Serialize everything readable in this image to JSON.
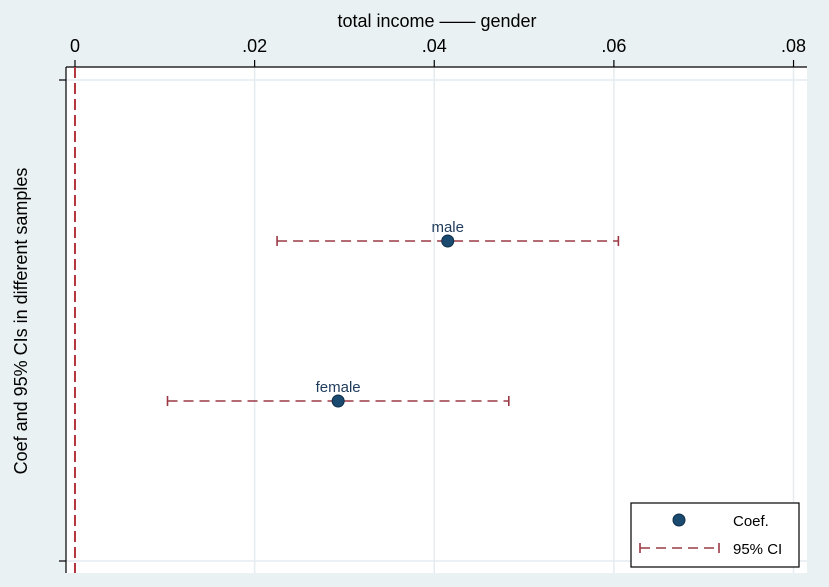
{
  "chart_data": {
    "type": "scatter",
    "title": "total income —— gender",
    "ylabel": "Coef and 95% CIs in different samples",
    "xlim": [
      -0.001,
      0.0815
    ],
    "ylim": [
      0,
      3
    ],
    "x_ticks": [
      {
        "value": 0,
        "label": "0"
      },
      {
        "value": 0.02,
        "label": ".02"
      },
      {
        "value": 0.04,
        "label": ".04"
      },
      {
        "value": 0.06,
        "label": ".06"
      },
      {
        "value": 0.08,
        "label": ".08"
      }
    ],
    "reference_line": {
      "x": 0
    },
    "points": [
      {
        "label": "male",
        "y": 2,
        "coef": 0.0415,
        "ci_low": 0.0225,
        "ci_high": 0.0605
      },
      {
        "label": "female",
        "y": 1,
        "coef": 0.0293,
        "ci_low": 0.0103,
        "ci_high": 0.0483
      }
    ],
    "legend": {
      "position": "bottom-right",
      "entries": [
        {
          "name": "Coef."
        },
        {
          "name": "95% CI"
        }
      ]
    },
    "colors": {
      "point": "#1a4a70",
      "ci": "#9c3844",
      "refline": "#b5343f",
      "grid": "#e4ecf0",
      "background": "#eaf1f3",
      "plot": "#ffffff",
      "point_label": "#1f3b5c"
    }
  }
}
